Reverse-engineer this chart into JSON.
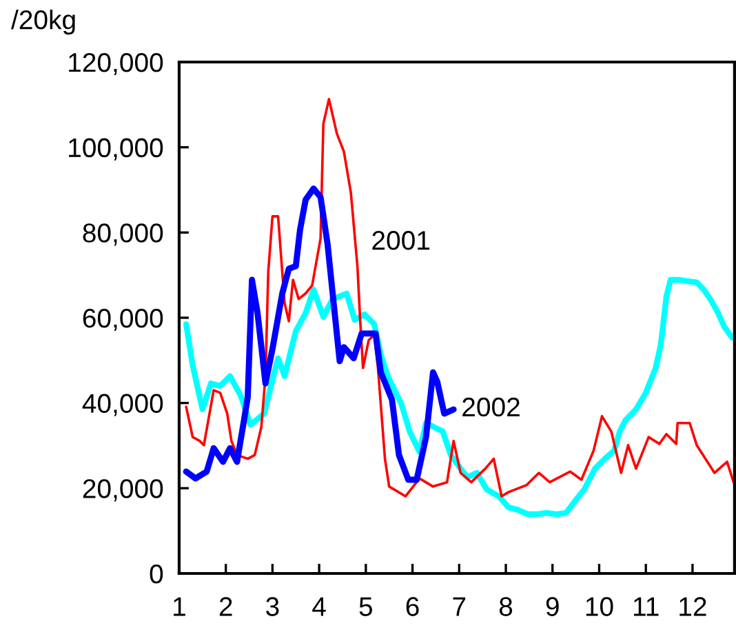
{
  "chart_data": {
    "type": "line",
    "ylabel": "/20kg",
    "xlim": [
      1,
      12.9
    ],
    "xticks": [
      1,
      2,
      3,
      4,
      5,
      6,
      7,
      8,
      9,
      10,
      11,
      12
    ],
    "ylim": [
      0,
      120000
    ],
    "yticks": [
      0,
      {
        "value": 20000,
        "label": "20,000"
      },
      {
        "value": 40000,
        "label": "40,000"
      },
      {
        "value": 60000,
        "label": "60,000"
      },
      {
        "value": 80000,
        "label": "80,000"
      },
      {
        "value": 100000,
        "label": "100,000"
      },
      {
        "value": 120000,
        "label": "120,000"
      }
    ],
    "grid": false,
    "legend": false,
    "marker": "none",
    "line_style": "solid",
    "series": [
      {
        "color": "#00ffff",
        "x": [
          1.15,
          1.29,
          1.5,
          1.68,
          1.88,
          2.09,
          2.32,
          2.53,
          2.82,
          3.12,
          3.26,
          3.5,
          3.71,
          3.88,
          4.09,
          4.29,
          4.59,
          4.76,
          4.97,
          5.18,
          5.32,
          5.47,
          5.76,
          5.94,
          6.15,
          6.29,
          6.47,
          6.65,
          6.82,
          7.03,
          7.18,
          7.38,
          7.59,
          7.85,
          8.06,
          8.26,
          8.47,
          8.65,
          8.88,
          9.09,
          9.29,
          9.47,
          9.68,
          9.91,
          10.12,
          10.32,
          10.44,
          10.56,
          10.79,
          11.0,
          11.21,
          11.32,
          11.44,
          11.53,
          11.71,
          11.88,
          12.09,
          12.24,
          12.38,
          12.53,
          12.68,
          12.85
        ],
        "values": [
          58500,
          48800,
          38500,
          44600,
          44000,
          46300,
          41700,
          34900,
          37500,
          50500,
          46300,
          56900,
          61100,
          66600,
          60200,
          64400,
          65700,
          59500,
          60800,
          58500,
          51400,
          46300,
          39800,
          33300,
          28500,
          35300,
          34300,
          33300,
          27800,
          24600,
          22600,
          23600,
          19700,
          18100,
          15500,
          14900,
          13900,
          13900,
          14200,
          13900,
          14200,
          16800,
          19700,
          24600,
          26900,
          28800,
          33300,
          35900,
          38500,
          42400,
          48200,
          53700,
          65000,
          68900,
          68900,
          68600,
          68300,
          66600,
          64400,
          61500,
          57900,
          55300
        ]
      },
      {
        "name": "2001",
        "color": "#ff0000",
        "x": [
          1.15,
          1.29,
          1.44,
          1.53,
          1.74,
          1.88,
          2.03,
          2.12,
          2.24,
          2.47,
          2.62,
          2.76,
          2.85,
          2.91,
          3.0,
          3.12,
          3.26,
          3.35,
          3.44,
          3.56,
          3.71,
          3.85,
          3.94,
          4.03,
          4.09,
          4.21,
          4.38,
          4.53,
          4.68,
          4.82,
          4.88,
          4.94,
          5.06,
          5.18,
          5.26,
          5.41,
          5.5,
          5.85,
          6.15,
          6.44,
          6.74,
          6.88,
          7.03,
          7.26,
          7.56,
          7.74,
          7.91,
          8.06,
          8.44,
          8.71,
          8.94,
          9.38,
          9.62,
          9.88,
          10.06,
          10.26,
          10.47,
          10.62,
          10.79,
          11.06,
          11.29,
          11.44,
          11.65,
          11.68,
          11.94,
          12.09,
          12.47,
          12.74,
          12.88
        ],
        "values": [
          39100,
          32000,
          31100,
          30100,
          43000,
          42400,
          37500,
          31100,
          27800,
          26900,
          27800,
          34300,
          46300,
          70800,
          83800,
          83800,
          63400,
          59200,
          68900,
          64400,
          65700,
          67600,
          73100,
          78600,
          105500,
          111300,
          103200,
          99000,
          89300,
          72100,
          59200,
          48200,
          54700,
          56000,
          48200,
          26900,
          20400,
          18100,
          22300,
          20400,
          21400,
          31100,
          23600,
          21400,
          24600,
          26900,
          18100,
          19100,
          20700,
          23600,
          21400,
          23900,
          22000,
          28800,
          36900,
          33300,
          23600,
          30100,
          24600,
          32000,
          30400,
          32700,
          30400,
          35300,
          35300,
          30100,
          23600,
          26200,
          21400
        ]
      },
      {
        "name": "2002",
        "color": "#0000ff",
        "x": [
          1.15,
          1.35,
          1.59,
          1.74,
          1.94,
          2.09,
          2.24,
          2.38,
          2.47,
          2.56,
          2.68,
          2.85,
          3.0,
          3.21,
          3.35,
          3.5,
          3.59,
          3.71,
          3.88,
          4.03,
          4.18,
          4.32,
          4.44,
          4.53,
          4.74,
          4.91,
          5.21,
          5.32,
          5.56,
          5.71,
          5.91,
          6.09,
          6.29,
          6.44,
          6.53,
          6.68,
          6.88
        ],
        "values": [
          23900,
          22300,
          23900,
          29400,
          26200,
          29400,
          26200,
          35300,
          41400,
          68900,
          61100,
          44600,
          52700,
          65700,
          71500,
          72100,
          80600,
          87700,
          90300,
          88300,
          77300,
          62400,
          49800,
          53100,
          50500,
          56300,
          56300,
          47200,
          40800,
          27800,
          22000,
          22000,
          32000,
          47200,
          45000,
          37500,
          38500
        ]
      }
    ]
  }
}
